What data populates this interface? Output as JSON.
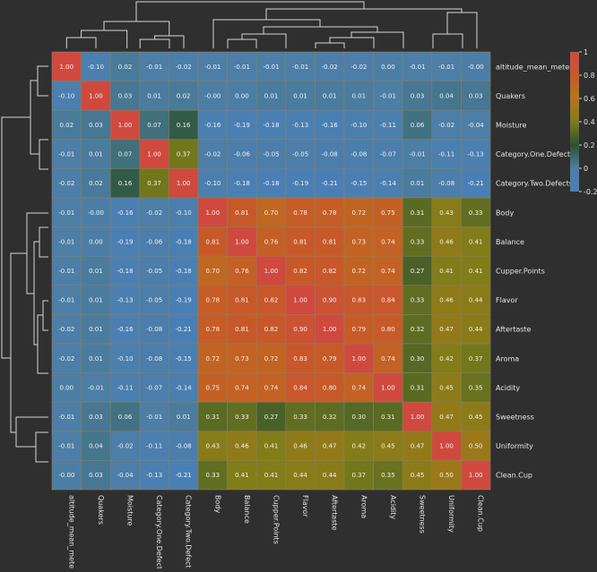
{
  "chart_data": {
    "type": "heatmap",
    "title": "",
    "xlabel": "",
    "ylabel": "",
    "labels": [
      "altitude_mean_meters",
      "Quakers",
      "Moisture",
      "Category.One.Defects",
      "Category.Two.Defects",
      "Body",
      "Balance",
      "Cupper.Points",
      "Flavor",
      "Aftertaste",
      "Aroma",
      "Acidity",
      "Sweetness",
      "Uniformity",
      "Clean.Cup"
    ],
    "display_values": [
      [
        "1.00",
        "-0.10",
        "0.02",
        "-0.01",
        "-0.02",
        "-0.01",
        "-0.01",
        "-0.01",
        "-0.01",
        "-0.02",
        "-0.02",
        "0.00",
        "-0.01",
        "-0.01",
        "-0.00"
      ],
      [
        "-0.10",
        "1.00",
        "0.03",
        "0.01",
        "0.02",
        "-0.00",
        "0.00",
        "0.01",
        "0.01",
        "0.01",
        "0.01",
        "-0.01",
        "0.03",
        "0.04",
        "0.03"
      ],
      [
        "0.02",
        "0.03",
        "1.00",
        "0.07",
        "0.16",
        "-0.16",
        "-0.19",
        "-0.18",
        "-0.13",
        "-0.16",
        "-0.10",
        "-0.11",
        "0.06",
        "-0.02",
        "-0.04"
      ],
      [
        "-0.01",
        "0.01",
        "0.07",
        "1.00",
        "0.37",
        "-0.02",
        "-0.06",
        "-0.05",
        "-0.05",
        "-0.08",
        "-0.08",
        "-0.07",
        "-0.01",
        "-0.11",
        "-0.13"
      ],
      [
        "-0.02",
        "0.02",
        "0.16",
        "0.37",
        "1.00",
        "-0.10",
        "-0.18",
        "-0.18",
        "-0.19",
        "-0.21",
        "-0.15",
        "-0.14",
        "0.01",
        "-0.08",
        "-0.21"
      ],
      [
        "-0.01",
        "-0.00",
        "-0.16",
        "-0.02",
        "-0.10",
        "1.00",
        "0.81",
        "0.70",
        "0.78",
        "0.78",
        "0.72",
        "0.75",
        "0.31",
        "0.43",
        "0.33"
      ],
      [
        "-0.01",
        "0.00",
        "-0.19",
        "-0.06",
        "-0.18",
        "0.81",
        "1.00",
        "0.76",
        "0.81",
        "0.81",
        "0.73",
        "0.74",
        "0.33",
        "0.46",
        "0.41"
      ],
      [
        "-0.01",
        "0.01",
        "-0.18",
        "-0.05",
        "-0.18",
        "0.70",
        "0.76",
        "1.00",
        "0.82",
        "0.82",
        "0.72",
        "0.74",
        "0.27",
        "0.41",
        "0.41"
      ],
      [
        "-0.01",
        "0.01",
        "-0.13",
        "-0.05",
        "-0.19",
        "0.78",
        "0.81",
        "0.82",
        "1.00",
        "0.90",
        "0.83",
        "0.84",
        "0.33",
        "0.46",
        "0.44"
      ],
      [
        "-0.02",
        "0.01",
        "-0.16",
        "-0.08",
        "-0.21",
        "0.78",
        "0.81",
        "0.82",
        "0.90",
        "1.00",
        "0.79",
        "0.80",
        "0.32",
        "0.47",
        "0.44"
      ],
      [
        "-0.02",
        "0.01",
        "-0.10",
        "-0.08",
        "-0.15",
        "0.72",
        "0.73",
        "0.72",
        "0.83",
        "0.79",
        "1.00",
        "0.74",
        "0.30",
        "0.42",
        "0.37"
      ],
      [
        "0.00",
        "-0.01",
        "-0.11",
        "-0.07",
        "-0.14",
        "0.75",
        "0.74",
        "0.74",
        "0.84",
        "0.80",
        "0.74",
        "1.00",
        "0.31",
        "0.45",
        "0.35"
      ],
      [
        "-0.01",
        "0.03",
        "0.06",
        "-0.01",
        "0.01",
        "0.31",
        "0.33",
        "0.27",
        "0.33",
        "0.32",
        "0.30",
        "0.31",
        "1.00",
        "0.47",
        "0.45"
      ],
      [
        "-0.01",
        "0.04",
        "-0.02",
        "-0.11",
        "-0.08",
        "0.43",
        "0.46",
        "0.41",
        "0.46",
        "0.47",
        "0.42",
        "0.45",
        "0.47",
        "1.00",
        "0.50"
      ],
      [
        "-0.00",
        "0.03",
        "-0.04",
        "-0.13",
        "-0.21",
        "0.33",
        "0.41",
        "0.41",
        "0.44",
        "0.44",
        "0.37",
        "0.35",
        "0.45",
        "0.50",
        "1.00"
      ]
    ],
    "colorbar": {
      "min": -0.2,
      "max": 1.0,
      "ticks": [
        "1",
        "0.8",
        "0.6",
        "0.4",
        "0.2",
        "0",
        "-0.2"
      ],
      "tick_values": [
        1,
        0.8,
        0.6,
        0.4,
        0.2,
        0,
        -0.2
      ]
    },
    "colormap": [
      [
        -0.2,
        "#4a7fb5"
      ],
      [
        0.0,
        "#4c7ea5"
      ],
      [
        0.2,
        "#2c5230"
      ],
      [
        0.4,
        "#7e7d19"
      ],
      [
        0.6,
        "#b8741a"
      ],
      [
        0.8,
        "#c75a28"
      ],
      [
        1.0,
        "#d0493f"
      ]
    ],
    "dendrogram": true,
    "grid": false
  }
}
